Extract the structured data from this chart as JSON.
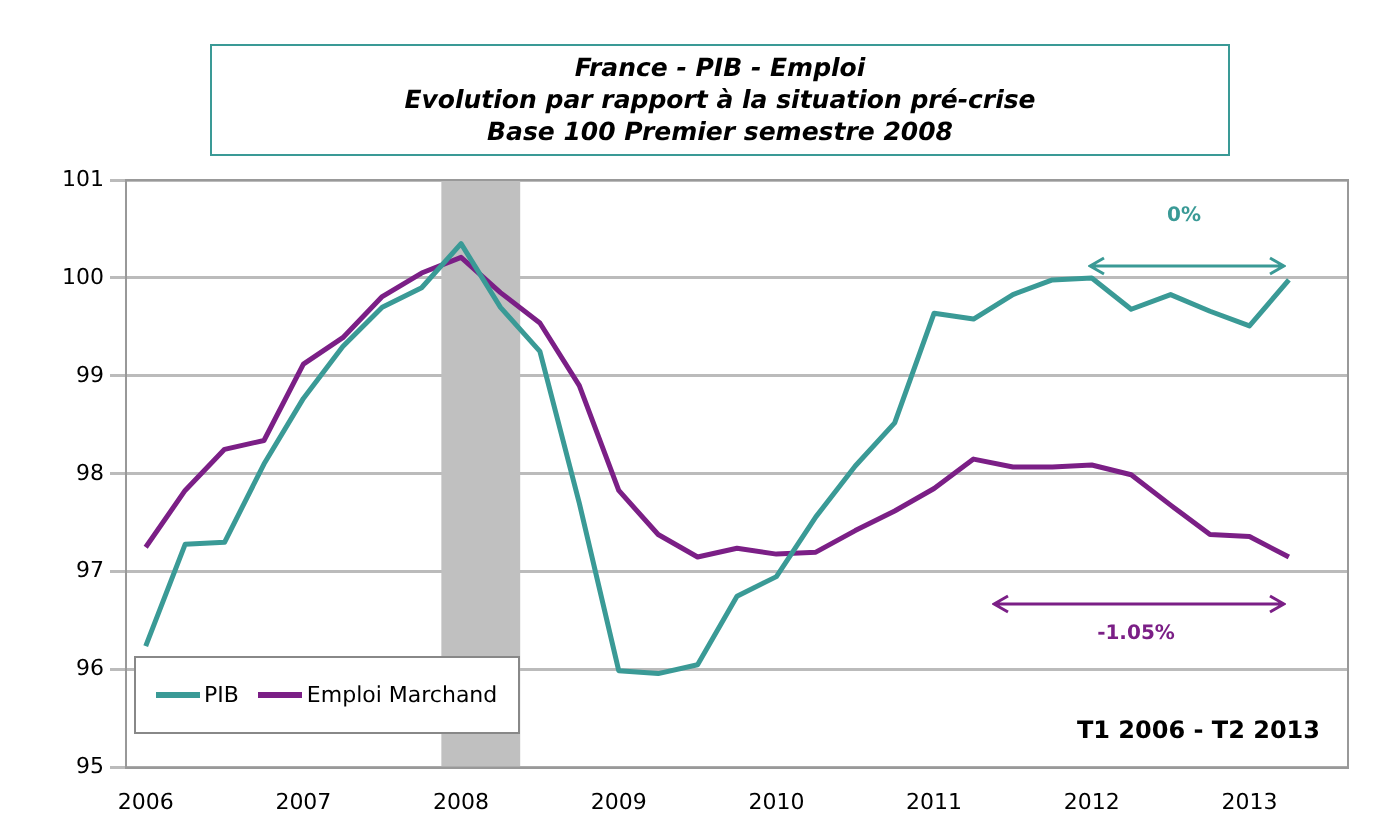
{
  "chart_data": {
    "type": "line",
    "title": "France - PIB - Emploi\nEvolution par rapport à la situation pré-crise\nBase 100 Premier semestre 2008",
    "x": [
      2006,
      2006.25,
      2006.5,
      2006.75,
      2007,
      2007.25,
      2007.5,
      2007.75,
      2008,
      2008.25,
      2008.5,
      2008.75,
      2009,
      2009.25,
      2009.5,
      2009.75,
      2010,
      2010.25,
      2010.5,
      2010.75,
      2011,
      2011.25,
      2011.5,
      2011.75,
      2012,
      2012.25,
      2012.5,
      2012.75,
      2013,
      2013.25
    ],
    "series": [
      {
        "name": "PIB",
        "color": "#3a9a96",
        "values": [
          96.24,
          97.28,
          97.3,
          98.1,
          98.77,
          99.3,
          99.7,
          99.9,
          100.35,
          99.7,
          99.25,
          97.7,
          95.99,
          95.96,
          96.05,
          96.75,
          96.95,
          97.56,
          98.08,
          98.52,
          99.64,
          99.58,
          99.83,
          99.98,
          100.0,
          99.68,
          99.83,
          99.66,
          99.51,
          99.98
        ]
      },
      {
        "name": "Emploi Marchand",
        "color": "#7b1f86",
        "values": [
          97.25,
          97.83,
          98.25,
          98.34,
          99.12,
          99.39,
          99.81,
          100.05,
          100.21,
          99.85,
          99.54,
          98.9,
          97.83,
          97.38,
          97.15,
          97.24,
          97.18,
          97.2,
          97.42,
          97.62,
          97.85,
          98.15,
          98.07,
          98.07,
          98.09,
          97.99,
          97.68,
          97.38,
          97.36,
          97.15
        ]
      }
    ],
    "xlim": [
      2005.875,
      2013.625
    ],
    "xticks": [
      2006,
      2007,
      2008,
      2009,
      2010,
      2011,
      2012,
      2013
    ],
    "ylim": [
      95,
      101
    ],
    "yticks": [
      95,
      96,
      97,
      98,
      99,
      100,
      101
    ],
    "bands": [
      {
        "axis": "x",
        "from": 2007.875,
        "to": 2008.375,
        "color": "#c0c0c0"
      }
    ],
    "annotations": [
      "0%",
      "-1.05%",
      "T1 2006 - T2 2013"
    ],
    "grid": "y",
    "legend": "bottom left",
    "marker": "none",
    "line_style": "solid"
  }
}
